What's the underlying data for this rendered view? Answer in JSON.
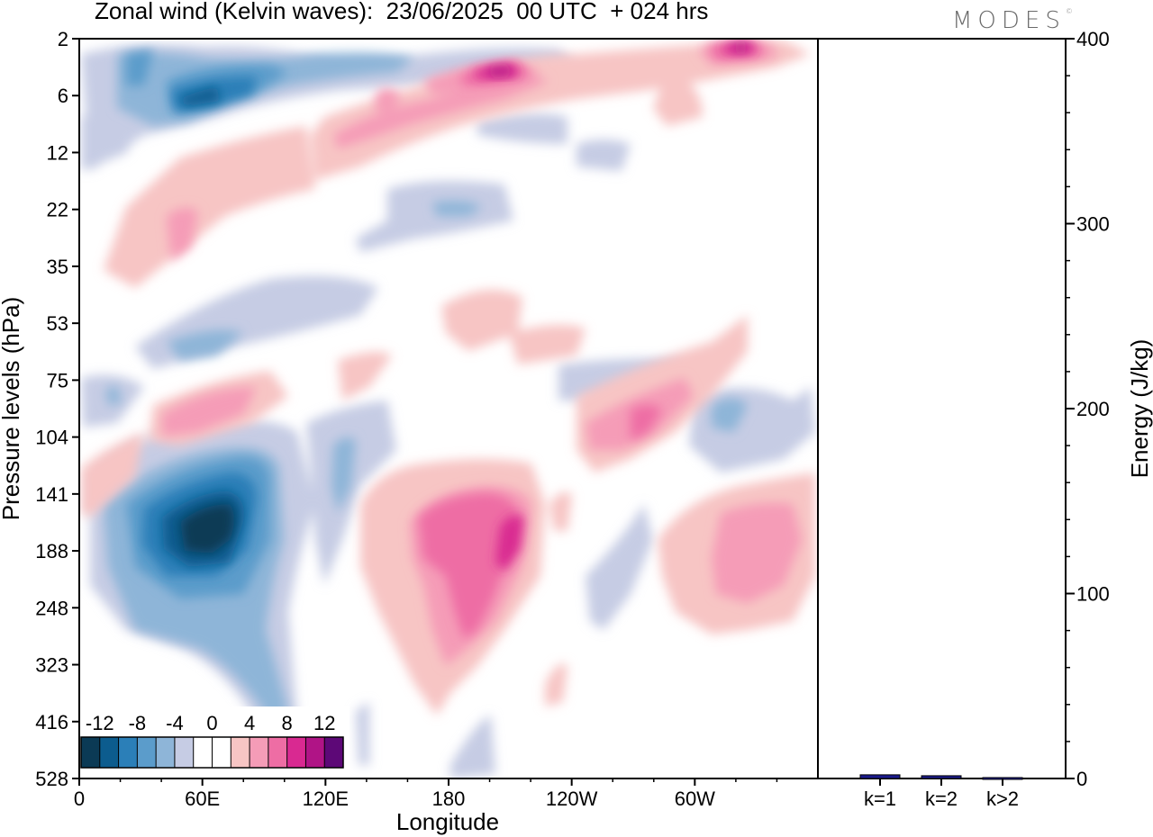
{
  "title": "Zonal wind (Kelvin waves):  23/06/2025  00 UTC  + 024 hrs",
  "brand": "MODES",
  "brand_mark": "©",
  "chart_data": [
    {
      "type": "heatmap",
      "xlabel": "Longitude",
      "ylabel": "Pressure levels (hPa)",
      "x_ticks": [
        "0",
        "60E",
        "120E",
        "180",
        "120W",
        "60W"
      ],
      "y_ticks": [
        "2",
        "6",
        "12",
        "22",
        "35",
        "53",
        "75",
        "104",
        "141",
        "188",
        "248",
        "323",
        "416",
        "528"
      ],
      "colorbar": {
        "labels": [
          "-12",
          "-8",
          "-4",
          "0",
          "4",
          "8",
          "12"
        ],
        "levels": [
          -14,
          -12,
          -10,
          -8,
          -6,
          -4,
          -2,
          0,
          2,
          4,
          6,
          8,
          10,
          12,
          14
        ],
        "colors": [
          "#0b3a55",
          "#0c5c8e",
          "#2b7fb8",
          "#5b9ccb",
          "#8eb5d8",
          "#c6cce4",
          "#ffffff",
          "#ffffff",
          "#f7c5c4",
          "#f59cb7",
          "#ee6da4",
          "#d92991",
          "#b01486",
          "#5d0877"
        ]
      },
      "regions": [
        {
          "value": -13,
          "lon": 62,
          "level": 150
        },
        {
          "value": -10,
          "lon": 60,
          "level": 165
        },
        {
          "value": -7,
          "lon": 58,
          "level": 185
        },
        {
          "value": -5,
          "lon": 70,
          "level": 240
        },
        {
          "value": 9,
          "lon": 196,
          "level": 165
        },
        {
          "value": 7,
          "lon": 185,
          "level": 175
        },
        {
          "value": 4,
          "lon": 190,
          "level": 220
        },
        {
          "value": 6,
          "lon": 268,
          "level": 103
        },
        {
          "value": 4,
          "lon": 322,
          "level": 170
        },
        {
          "value": 5,
          "lon": 30,
          "level": 22
        },
        {
          "value": -7,
          "lon": 25,
          "level": 6
        },
        {
          "value": 9,
          "lon": 198,
          "level": 4
        },
        {
          "value": 10,
          "lon": 320,
          "level": 2
        }
      ]
    },
    {
      "type": "bar",
      "categories": [
        "k=1",
        "k=2",
        "k>2"
      ],
      "values": [
        2,
        1.5,
        0.5
      ],
      "ylabel": "Energy (J/kg)",
      "ylim": [
        0,
        400
      ],
      "y_ticks": [
        "0",
        "100",
        "200",
        "300",
        "400"
      ],
      "bar_color": "#1a1a8c"
    }
  ]
}
